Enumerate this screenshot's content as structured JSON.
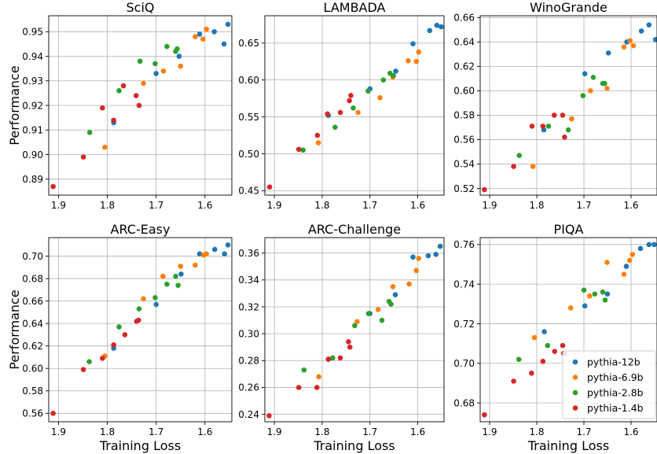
{
  "colors": {
    "pythia-12b": "#1f77b4",
    "pythia-6.9b": "#ff7f0e",
    "pythia-2.8b": "#2ca02c",
    "pythia-1.4b": "#d62728"
  },
  "legend": {
    "placement": "lower-right",
    "panel": 5,
    "entries": [
      "pythia-12b",
      "pythia-6.9b",
      "pythia-2.8b",
      "pythia-1.4b"
    ]
  },
  "chart_data": [
    {
      "type": "scatter",
      "title": "SciQ",
      "xlabel": "",
      "ylabel": "Performance",
      "xlim": [
        1.92,
        1.545
      ],
      "ylim": [
        0.8835,
        0.9565
      ],
      "x_inverted": true,
      "grid": true,
      "xticks": [
        1.9,
        1.8,
        1.7,
        1.6
      ],
      "xtick_labels": [
        "1.9",
        "1.8",
        "1.7",
        "1.6"
      ],
      "yticks": [
        0.89,
        0.9,
        0.91,
        0.92,
        0.93,
        0.94,
        0.95
      ],
      "ytick_labels": [
        "0.89",
        "0.90",
        "0.91",
        "0.92",
        "0.93",
        "0.94",
        "0.95"
      ],
      "series": [
        {
          "name": "pythia-12b",
          "points": [
            [
              1.787,
              0.913
            ],
            [
              1.7,
              0.933
            ],
            [
              1.653,
              0.94
            ],
            [
              1.611,
              0.949
            ],
            [
              1.581,
              0.95
            ],
            [
              1.561,
              0.945
            ],
            [
              1.553,
              0.953
            ]
          ]
        },
        {
          "name": "pythia-6.9b",
          "points": [
            [
              1.805,
              0.903
            ],
            [
              1.726,
              0.929
            ],
            [
              1.685,
              0.934
            ],
            [
              1.65,
              0.936
            ],
            [
              1.62,
              0.948
            ],
            [
              1.604,
              0.947
            ],
            [
              1.597,
              0.951
            ]
          ]
        },
        {
          "name": "pythia-2.8b",
          "points": [
            [
              1.836,
              0.909
            ],
            [
              1.776,
              0.926
            ],
            [
              1.733,
              0.938
            ],
            [
              1.702,
              0.937
            ],
            [
              1.678,
              0.944
            ],
            [
              1.66,
              0.942
            ],
            [
              1.657,
              0.943
            ]
          ]
        },
        {
          "name": "pythia-1.4b",
          "points": [
            [
              1.911,
              0.887
            ],
            [
              1.849,
              0.899
            ],
            [
              1.81,
              0.919
            ],
            [
              1.787,
              0.914
            ],
            [
              1.767,
              0.928
            ],
            [
              1.741,
              0.924
            ],
            [
              1.735,
              0.92
            ]
          ]
        }
      ]
    },
    {
      "type": "scatter",
      "title": "LAMBADA",
      "xlabel": "",
      "ylabel": "",
      "xlim": [
        1.92,
        1.545
      ],
      "ylim": [
        0.444,
        0.687
      ],
      "x_inverted": true,
      "grid": true,
      "xticks": [
        1.9,
        1.8,
        1.7,
        1.6
      ],
      "xtick_labels": [
        "1.9",
        "1.8",
        "1.7",
        "1.6"
      ],
      "yticks": [
        0.45,
        0.5,
        0.55,
        0.6,
        0.65
      ],
      "ytick_labels": [
        "0.45",
        "0.50",
        "0.55",
        "0.60",
        "0.65"
      ],
      "series": [
        {
          "name": "pythia-12b",
          "points": [
            [
              1.787,
              0.552
            ],
            [
              1.7,
              0.588
            ],
            [
              1.646,
              0.612
            ],
            [
              1.61,
              0.649
            ],
            [
              1.575,
              0.667
            ],
            [
              1.56,
              0.674
            ],
            [
              1.551,
              0.672
            ]
          ]
        },
        {
          "name": "pythia-6.9b",
          "points": [
            [
              1.808,
              0.515
            ],
            [
              1.725,
              0.556
            ],
            [
              1.679,
              0.576
            ],
            [
              1.652,
              0.604
            ],
            [
              1.62,
              0.626
            ],
            [
              1.603,
              0.625
            ],
            [
              1.598,
              0.638
            ]
          ]
        },
        {
          "name": "pythia-2.8b",
          "points": [
            [
              1.84,
              0.505
            ],
            [
              1.773,
              0.536
            ],
            [
              1.735,
              0.562
            ],
            [
              1.704,
              0.585
            ],
            [
              1.672,
              0.6
            ],
            [
              1.658,
              0.609
            ],
            [
              1.651,
              0.606
            ]
          ]
        },
        {
          "name": "pythia-1.4b",
          "points": [
            [
              1.91,
              0.455
            ],
            [
              1.849,
              0.506
            ],
            [
              1.81,
              0.525
            ],
            [
              1.789,
              0.554
            ],
            [
              1.762,
              0.556
            ],
            [
              1.743,
              0.572
            ],
            [
              1.74,
              0.579
            ]
          ]
        }
      ]
    },
    {
      "type": "scatter",
      "title": "WinoGrande",
      "xlabel": "",
      "ylabel": "",
      "xlim": [
        1.92,
        1.545
      ],
      "ylim": [
        0.5145,
        0.6615
      ],
      "x_inverted": true,
      "grid": true,
      "xticks": [
        1.9,
        1.8,
        1.7,
        1.6
      ],
      "xtick_labels": [
        "1.9",
        "1.8",
        "1.7",
        "1.6"
      ],
      "yticks": [
        0.52,
        0.54,
        0.56,
        0.58,
        0.6,
        0.62,
        0.64,
        0.66
      ],
      "ytick_labels": [
        "0.52",
        "0.54",
        "0.56",
        "0.58",
        "0.60",
        "0.62",
        "0.64",
        "0.66"
      ],
      "series": [
        {
          "name": "pythia-12b",
          "points": [
            [
              1.785,
              0.568
            ],
            [
              1.698,
              0.614
            ],
            [
              1.648,
              0.631
            ],
            [
              1.609,
              0.64
            ],
            [
              1.578,
              0.649
            ],
            [
              1.562,
              0.654
            ],
            [
              1.548,
              0.642
            ]
          ]
        },
        {
          "name": "pythia-6.9b",
          "points": [
            [
              1.808,
              0.538
            ],
            [
              1.726,
              0.577
            ],
            [
              1.686,
              0.6
            ],
            [
              1.651,
              0.602
            ],
            [
              1.615,
              0.636
            ],
            [
              1.602,
              0.641
            ],
            [
              1.595,
              0.637
            ]
          ]
        },
        {
          "name": "pythia-2.8b",
          "points": [
            [
              1.837,
              0.547
            ],
            [
              1.775,
              0.571
            ],
            [
              1.733,
              0.568
            ],
            [
              1.702,
              0.596
            ],
            [
              1.68,
              0.611
            ],
            [
              1.66,
              0.606
            ],
            [
              1.656,
              0.606
            ]
          ]
        },
        {
          "name": "pythia-1.4b",
          "points": [
            [
              1.911,
              0.519
            ],
            [
              1.849,
              0.538
            ],
            [
              1.81,
              0.571
            ],
            [
              1.787,
              0.571
            ],
            [
              1.763,
              0.58
            ],
            [
              1.745,
              0.58
            ],
            [
              1.741,
              0.562
            ]
          ]
        }
      ]
    },
    {
      "type": "scatter",
      "title": "ARC-Easy",
      "xlabel": "Training Loss",
      "ylabel": "Performance",
      "xlim": [
        1.92,
        1.545
      ],
      "ylim": [
        0.5525,
        0.7165
      ],
      "x_inverted": true,
      "grid": true,
      "xticks": [
        1.9,
        1.8,
        1.7,
        1.6
      ],
      "xtick_labels": [
        "1.9",
        "1.8",
        "1.7",
        "1.6"
      ],
      "yticks": [
        0.56,
        0.58,
        0.6,
        0.62,
        0.64,
        0.66,
        0.68,
        0.7
      ],
      "ytick_labels": [
        "0.56",
        "0.58",
        "0.60",
        "0.62",
        "0.64",
        "0.66",
        "0.68",
        "0.70"
      ],
      "series": [
        {
          "name": "pythia-12b",
          "points": [
            [
              1.787,
              0.618
            ],
            [
              1.7,
              0.657
            ],
            [
              1.649,
              0.684
            ],
            [
              1.611,
              0.702
            ],
            [
              1.58,
              0.706
            ],
            [
              1.56,
              0.702
            ],
            [
              1.553,
              0.71
            ]
          ]
        },
        {
          "name": "pythia-6.9b",
          "points": [
            [
              1.805,
              0.611
            ],
            [
              1.726,
              0.662
            ],
            [
              1.686,
              0.682
            ],
            [
              1.65,
              0.691
            ],
            [
              1.62,
              0.692
            ],
            [
              1.603,
              0.701
            ],
            [
              1.597,
              0.702
            ]
          ]
        },
        {
          "name": "pythia-2.8b",
          "points": [
            [
              1.837,
              0.606
            ],
            [
              1.776,
              0.637
            ],
            [
              1.735,
              0.653
            ],
            [
              1.702,
              0.663
            ],
            [
              1.678,
              0.675
            ],
            [
              1.66,
              0.682
            ],
            [
              1.655,
              0.674
            ]
          ]
        },
        {
          "name": "pythia-1.4b",
          "points": [
            [
              1.911,
              0.56
            ],
            [
              1.849,
              0.599
            ],
            [
              1.81,
              0.609
            ],
            [
              1.787,
              0.621
            ],
            [
              1.764,
              0.63
            ],
            [
              1.74,
              0.642
            ],
            [
              1.736,
              0.643
            ]
          ]
        }
      ]
    },
    {
      "type": "scatter",
      "title": "ARC-Challenge",
      "xlabel": "Training Loss",
      "ylabel": "",
      "xlim": [
        1.92,
        1.545
      ],
      "ylim": [
        0.2345,
        0.3715
      ],
      "x_inverted": true,
      "grid": true,
      "xticks": [
        1.9,
        1.8,
        1.7,
        1.6
      ],
      "xtick_labels": [
        "1.9",
        "1.8",
        "1.7",
        "1.6"
      ],
      "yticks": [
        0.24,
        0.26,
        0.28,
        0.3,
        0.32,
        0.34,
        0.36
      ],
      "ytick_labels": [
        "0.24",
        "0.26",
        "0.28",
        "0.30",
        "0.32",
        "0.34",
        "0.36"
      ],
      "series": [
        {
          "name": "pythia-12b",
          "points": [
            [
              1.787,
              0.281
            ],
            [
              1.7,
              0.315
            ],
            [
              1.647,
              0.329
            ],
            [
              1.61,
              0.357
            ],
            [
              1.578,
              0.358
            ],
            [
              1.562,
              0.359
            ],
            [
              1.553,
              0.365
            ]
          ]
        },
        {
          "name": "pythia-6.9b",
          "points": [
            [
              1.807,
              0.268
            ],
            [
              1.727,
              0.309
            ],
            [
              1.683,
              0.318
            ],
            [
              1.652,
              0.335
            ],
            [
              1.618,
              0.337
            ],
            [
              1.603,
              0.347
            ],
            [
              1.598,
              0.356
            ]
          ]
        },
        {
          "name": "pythia-2.8b",
          "points": [
            [
              1.838,
              0.273
            ],
            [
              1.778,
              0.282
            ],
            [
              1.732,
              0.306
            ],
            [
              1.703,
              0.315
            ],
            [
              1.675,
              0.31
            ],
            [
              1.66,
              0.324
            ],
            [
              1.656,
              0.322
            ]
          ]
        },
        {
          "name": "pythia-1.4b",
          "points": [
            [
              1.911,
              0.239
            ],
            [
              1.849,
              0.26
            ],
            [
              1.811,
              0.26
            ],
            [
              1.787,
              0.281
            ],
            [
              1.762,
              0.282
            ],
            [
              1.745,
              0.294
            ],
            [
              1.742,
              0.29
            ]
          ]
        }
      ]
    },
    {
      "type": "scatter",
      "title": "PIQA",
      "xlabel": "Training Loss",
      "ylabel": "",
      "xlim": [
        1.92,
        1.545
      ],
      "ylim": [
        0.6705,
        0.7635
      ],
      "x_inverted": true,
      "grid": true,
      "xticks": [
        1.9,
        1.8,
        1.7,
        1.6
      ],
      "xtick_labels": [
        "1.9",
        "1.8",
        "1.7",
        "1.6"
      ],
      "yticks": [
        0.68,
        0.7,
        0.72,
        0.74,
        0.76
      ],
      "ytick_labels": [
        "0.68",
        "0.70",
        "0.72",
        "0.74",
        "0.76"
      ],
      "series": [
        {
          "name": "pythia-12b",
          "points": [
            [
              1.784,
              0.716
            ],
            [
              1.698,
              0.729
            ],
            [
              1.65,
              0.735
            ],
            [
              1.61,
              0.749
            ],
            [
              1.58,
              0.758
            ],
            [
              1.562,
              0.76
            ],
            [
              1.551,
              0.76
            ]
          ]
        },
        {
          "name": "pythia-6.9b",
          "points": [
            [
              1.805,
              0.713
            ],
            [
              1.728,
              0.728
            ],
            [
              1.688,
              0.734
            ],
            [
              1.651,
              0.751
            ],
            [
              1.615,
              0.745
            ],
            [
              1.603,
              0.752
            ],
            [
              1.597,
              0.755
            ]
          ]
        },
        {
          "name": "pythia-2.8b",
          "points": [
            [
              1.838,
              0.702
            ],
            [
              1.777,
              0.709
            ],
            [
              1.74,
              0.705
            ],
            [
              1.7,
              0.737
            ],
            [
              1.677,
              0.735
            ],
            [
              1.66,
              0.736
            ],
            [
              1.655,
              0.732
            ]
          ]
        },
        {
          "name": "pythia-1.4b",
          "points": [
            [
              1.911,
              0.674
            ],
            [
              1.849,
              0.691
            ],
            [
              1.811,
              0.695
            ],
            [
              1.787,
              0.701
            ],
            [
              1.762,
              0.706
            ],
            [
              1.745,
              0.709
            ],
            [
              1.743,
              0.705
            ]
          ]
        }
      ]
    }
  ]
}
